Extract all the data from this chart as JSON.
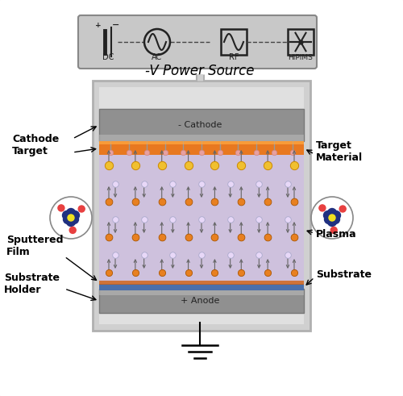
{
  "bg_color": "#ffffff",
  "title_text": "-V Power Source",
  "title_fontsize": 12,
  "cathode_label": "- Cathode",
  "anode_label": "+ Anode",
  "target_color": "#e87820",
  "substrate_color": "#4a6faa",
  "cathode_fill": "#8a8a8a",
  "anode_fill": "#8a8a8a",
  "chamber_outer": "#c0c0c0",
  "chamber_inner": "#d8d8d8",
  "plasma_color": "#c0a8dc",
  "power_box_bg": "#c0c0c0",
  "label_fontsize": 9,
  "particle_orange": "#e88020",
  "particle_yellow": "#f0c030",
  "particle_pink": "#e8a0a0",
  "particle_white": "#e0e0ff"
}
